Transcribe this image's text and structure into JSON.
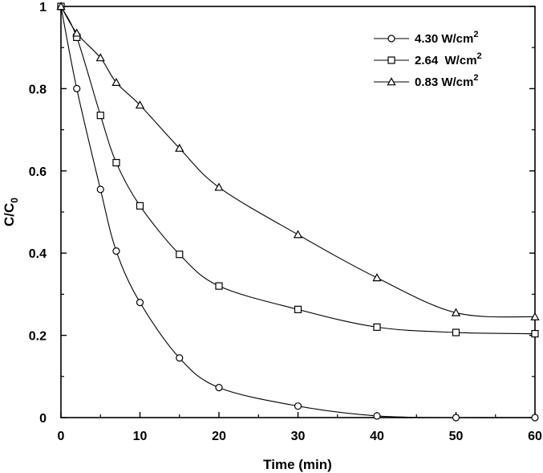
{
  "chart_data": {
    "type": "line",
    "xlabel": "Time (min)",
    "ylabel_main": "C/C",
    "ylabel_sub": "0",
    "xlim": [
      0,
      60
    ],
    "ylim": [
      0,
      1
    ],
    "x_ticks": [
      "0",
      "10",
      "20",
      "30",
      "40",
      "50",
      "60"
    ],
    "y_ticks": [
      "0",
      "0.2",
      "0.4",
      "0.6",
      "0.8",
      "1"
    ],
    "grid": false,
    "legend_position": "top-right",
    "series": [
      {
        "name_main": "4.30 W/cm",
        "name_sup": "2",
        "marker": "circle",
        "x": [
          0,
          2,
          5,
          7,
          10,
          15,
          20,
          30,
          40,
          50,
          60
        ],
        "y": [
          1.0,
          0.8,
          0.555,
          0.405,
          0.28,
          0.145,
          0.073,
          0.028,
          0.004,
          0.0,
          0.0
        ]
      },
      {
        "name_main": "2.64  W/cm",
        "name_sup": "2",
        "marker": "square",
        "x": [
          0,
          2,
          5,
          7,
          10,
          15,
          20,
          30,
          40,
          50,
          60
        ],
        "y": [
          1.0,
          0.925,
          0.735,
          0.62,
          0.515,
          0.397,
          0.32,
          0.263,
          0.22,
          0.207,
          0.204
        ]
      },
      {
        "name_main": "0.83 W/cm",
        "name_sup": "2",
        "marker": "triangle",
        "x": [
          0,
          2,
          5,
          7,
          10,
          15,
          20,
          30,
          40,
          50,
          60
        ],
        "y": [
          1.0,
          0.935,
          0.875,
          0.815,
          0.76,
          0.655,
          0.56,
          0.445,
          0.34,
          0.255,
          0.245
        ]
      }
    ]
  }
}
